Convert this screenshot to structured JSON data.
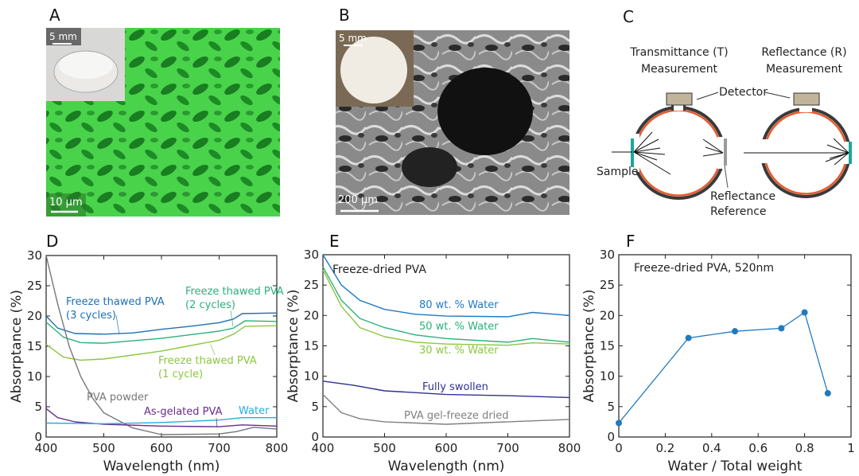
{
  "panels": {
    "a": {
      "label": "A",
      "inset_scale": "5 mm",
      "scale": "10 μm"
    },
    "b": {
      "label": "B",
      "inset_scale": "5 mm",
      "scale": "200 μm"
    },
    "c": {
      "label": "C",
      "transmittance_title": [
        "Transmittance (T)",
        "Measurement"
      ],
      "reflectance_title": [
        "Reflectance (R)",
        "Measurement"
      ],
      "detector": "Detector",
      "sample": "Sample",
      "reference": [
        "Reflectance",
        "Reference"
      ]
    },
    "d": {
      "label": "D"
    },
    "e": {
      "label": "E"
    },
    "f": {
      "label": "F"
    }
  },
  "colors": {
    "sphere": "#3a3a3a",
    "coating": "#e8582a",
    "detector": "#c2b49a",
    "sample": "#1aa89a",
    "reference": "#9a9a9a"
  },
  "chart_data": [
    {
      "type": "line",
      "id": "d",
      "xlabel": "Wavelength (nm)",
      "ylabel": "Absorptance (%)",
      "xlim": [
        400,
        800
      ],
      "ylim": [
        0,
        30
      ],
      "xticks": [
        400,
        500,
        600,
        700,
        800
      ],
      "yticks": [
        0,
        5,
        10,
        15,
        20,
        25,
        30
      ],
      "series": [
        {
          "name": "Freeze thawed PVA (3 cycles)",
          "label": [
            "Freeze thawed PVA",
            "(3 cycles)"
          ],
          "color": "#1f6fb5",
          "x": [
            400,
            420,
            450,
            500,
            550,
            600,
            650,
            700,
            725,
            740,
            800
          ],
          "y": [
            20,
            18,
            17.1,
            17,
            17.2,
            17.8,
            18.3,
            18.9,
            19.5,
            20.4,
            20.5
          ]
        },
        {
          "name": "Freeze thawed PVA (2 cycles)",
          "label": [
            "Freeze thawed PVA",
            "(2 cycles)"
          ],
          "color": "#2bb07a",
          "x": [
            400,
            430,
            460,
            500,
            600,
            700,
            725,
            745,
            800
          ],
          "y": [
            19,
            16.5,
            15.6,
            15.5,
            16.3,
            17.5,
            18,
            19.2,
            19.1
          ]
        },
        {
          "name": "Freeze thawed PVA (1 cycle)",
          "label": [
            "Freeze thawed PVA",
            "(1 cycle)"
          ],
          "color": "#8cc63f",
          "x": [
            400,
            430,
            460,
            500,
            600,
            700,
            725,
            745,
            800
          ],
          "y": [
            15.3,
            13.2,
            12.7,
            12.9,
            14.2,
            16,
            17,
            18.3,
            18.4
          ]
        },
        {
          "name": "PVA powder",
          "label": [
            "PVA powder"
          ],
          "color": "#777777",
          "x": [
            400,
            420,
            440,
            460,
            480,
            500,
            550,
            600,
            700,
            730,
            760,
            800
          ],
          "y": [
            30,
            22,
            15,
            10,
            6.5,
            4,
            1.5,
            0.4,
            0.5,
            0.9,
            1.6,
            1.3
          ]
        },
        {
          "name": "As-gelated PVA",
          "label": [
            "As-gelated PVA"
          ],
          "color": "#6a2c91",
          "x": [
            400,
            420,
            450,
            500,
            600,
            700,
            740,
            800
          ],
          "y": [
            4.7,
            3.2,
            2.5,
            2.1,
            1.8,
            1.7,
            2.0,
            1.8
          ]
        },
        {
          "name": "Water",
          "label": [
            "Water"
          ],
          "color": "#29abe2",
          "x": [
            400,
            500,
            600,
            700,
            740,
            800
          ],
          "y": [
            2.3,
            2.2,
            2.4,
            2.8,
            3.2,
            3.2
          ]
        }
      ]
    },
    {
      "type": "line",
      "id": "e",
      "title": "Freeze-dried PVA",
      "xlabel": "Wavelength (nm)",
      "ylabel": "Absorptance (%)",
      "xlim": [
        400,
        800
      ],
      "ylim": [
        0,
        30
      ],
      "xticks": [
        400,
        500,
        600,
        700,
        800
      ],
      "yticks": [
        0,
        5,
        10,
        15,
        20,
        25,
        30
      ],
      "series": [
        {
          "name": "80 wt. % Water",
          "label": [
            "80 wt. % Water"
          ],
          "color": "#1f7ac0",
          "x": [
            400,
            430,
            460,
            500,
            550,
            600,
            700,
            740,
            800
          ],
          "y": [
            30,
            25,
            22.5,
            21,
            20.2,
            19.9,
            19.8,
            20.5,
            20
          ]
        },
        {
          "name": "50 wt. % Water",
          "label": [
            "50 wt. % Water"
          ],
          "color": "#2bb07a",
          "x": [
            400,
            430,
            460,
            500,
            550,
            600,
            700,
            740,
            800
          ],
          "y": [
            28,
            22.5,
            19.5,
            18,
            16.8,
            16.2,
            15.6,
            16.2,
            15.6
          ]
        },
        {
          "name": "30 wt. % Water",
          "label": [
            "30 wt. % Water"
          ],
          "color": "#8cc63f",
          "x": [
            400,
            430,
            460,
            500,
            550,
            600,
            700,
            740,
            800
          ],
          "y": [
            27.5,
            21.5,
            18,
            16.5,
            15.6,
            15.3,
            15.1,
            15.5,
            15.3
          ]
        },
        {
          "name": "Fully swollen",
          "label": [
            "Fully swollen"
          ],
          "color": "#2e3192",
          "x": [
            400,
            450,
            500,
            600,
            700,
            800
          ],
          "y": [
            9.2,
            8.5,
            7.6,
            7,
            6.8,
            6.5
          ]
        },
        {
          "name": "PVA gel-freeze dried",
          "label": [
            "PVA gel-freeze dried"
          ],
          "color": "#808080",
          "x": [
            400,
            430,
            460,
            500,
            600,
            700,
            800
          ],
          "y": [
            7,
            4,
            3,
            2.5,
            2.1,
            2.5,
            2.9
          ]
        }
      ]
    },
    {
      "type": "line",
      "id": "f",
      "title": "Freeze-dried PVA, 520nm",
      "xlabel": "Water / Total weight",
      "ylabel": "Absorptance (%)",
      "xlim": [
        0,
        1
      ],
      "ylim": [
        0,
        30
      ],
      "xticks": [
        0,
        0.2,
        0.4,
        0.6,
        0.8,
        1
      ],
      "yticks": [
        0,
        5,
        10,
        15,
        20,
        25,
        30
      ],
      "series": [
        {
          "name": "Freeze-dried PVA, 520nm",
          "color": "#1f7ac0",
          "markers": true,
          "x": [
            0,
            0.3,
            0.5,
            0.7,
            0.8,
            0.9
          ],
          "y": [
            2.3,
            16.3,
            17.4,
            17.9,
            20.5,
            7.2
          ]
        }
      ]
    }
  ]
}
